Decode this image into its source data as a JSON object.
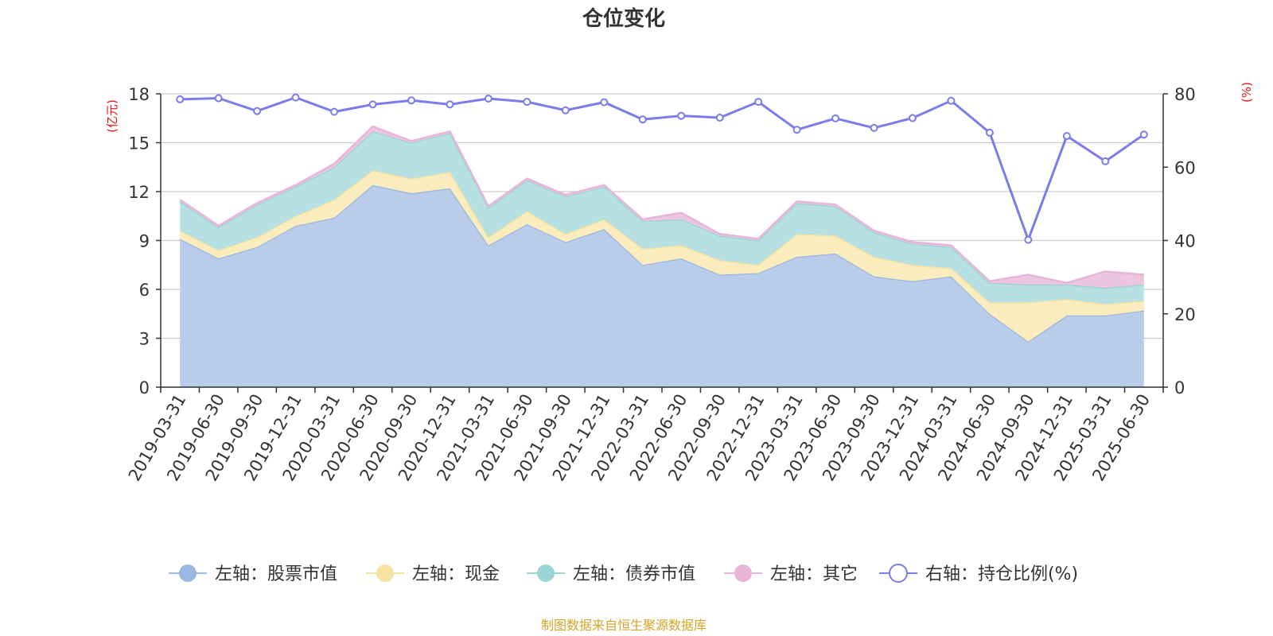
{
  "chart_data": {
    "type": "area",
    "title": "仓位变化",
    "left_axis_unit": "(亿元)",
    "right_axis_unit": "(%)",
    "source_note": "制图数据来自恒生聚源数据库",
    "left_ylim": [
      0,
      18
    ],
    "left_ticks": [
      "0",
      "3",
      "6",
      "9",
      "12",
      "15",
      "18"
    ],
    "right_ylim": [
      0,
      80
    ],
    "right_ticks": [
      "0",
      "20",
      "40",
      "60",
      "80"
    ],
    "grid": true,
    "legend_position": "bottom",
    "categories": [
      "2019-03-31",
      "2019-06-30",
      "2019-09-30",
      "2019-12-31",
      "2020-03-31",
      "2020-06-30",
      "2020-09-30",
      "2020-12-31",
      "2021-03-31",
      "2021-06-30",
      "2021-09-30",
      "2021-12-31",
      "2022-03-31",
      "2022-06-30",
      "2022-09-30",
      "2022-12-31",
      "2023-03-31",
      "2023-06-30",
      "2023-09-30",
      "2023-12-31",
      "2024-03-31",
      "2024-06-30",
      "2024-09-30",
      "2024-12-31",
      "2025-03-31",
      "2025-06-30"
    ],
    "series": [
      {
        "name": "左轴：股票市值",
        "axis": "left",
        "kind": "stacked-area",
        "color": "#9ab7e0",
        "fill": "#b9cdeb",
        "values": [
          9.1,
          7.9,
          8.6,
          9.9,
          10.4,
          12.4,
          11.9,
          12.2,
          8.7,
          10.0,
          8.9,
          9.7,
          7.5,
          7.9,
          6.9,
          7.0,
          8.0,
          8.2,
          6.8,
          6.5,
          6.8,
          4.5,
          2.8,
          4.4,
          4.4,
          4.7
        ]
      },
      {
        "name": "左轴：现金",
        "axis": "left",
        "kind": "stacked-area",
        "color": "#f5e2a0",
        "fill": "#fbecbd",
        "values": [
          0.5,
          0.5,
          0.6,
          0.6,
          1.1,
          0.9,
          0.9,
          1.0,
          0.5,
          0.8,
          0.5,
          0.6,
          1.0,
          0.8,
          0.9,
          0.5,
          1.4,
          1.1,
          1.2,
          1.0,
          0.5,
          0.7,
          2.4,
          1.0,
          0.7,
          0.6
        ]
      },
      {
        "name": "左轴：债券市值",
        "axis": "left",
        "kind": "stacked-area",
        "color": "#9ad4d4",
        "fill": "#b6e0e1",
        "values": [
          1.8,
          1.4,
          2.0,
          1.8,
          2.0,
          2.4,
          2.2,
          2.4,
          1.8,
          1.9,
          2.3,
          2.0,
          1.7,
          1.6,
          1.5,
          1.5,
          1.9,
          1.8,
          1.5,
          1.3,
          1.3,
          1.2,
          1.1,
          0.9,
          1.0,
          1.0
        ]
      },
      {
        "name": "左轴：其它",
        "axis": "left",
        "kind": "stacked-area",
        "color": "#e8b5d9",
        "fill": "#ecc6e0",
        "values": [
          0.1,
          0.1,
          0.1,
          0.1,
          0.2,
          0.3,
          0.1,
          0.1,
          0.1,
          0.1,
          0.1,
          0.1,
          0.1,
          0.4,
          0.1,
          0.1,
          0.1,
          0.1,
          0.1,
          0.1,
          0.1,
          0.1,
          0.6,
          0.1,
          1.0,
          0.6
        ]
      },
      {
        "name": "右轴：持仓比例(%)",
        "axis": "right",
        "kind": "line",
        "color": "#7b7bea",
        "values": [
          78.5,
          78.8,
          75.3,
          79.0,
          75.1,
          77.1,
          78.2,
          77.1,
          78.7,
          77.8,
          75.5,
          77.7,
          73.0,
          74.0,
          73.5,
          77.8,
          70.2,
          73.3,
          70.7,
          73.4,
          78.1,
          69.4,
          40.2,
          68.5,
          61.6,
          68.9
        ]
      }
    ]
  }
}
